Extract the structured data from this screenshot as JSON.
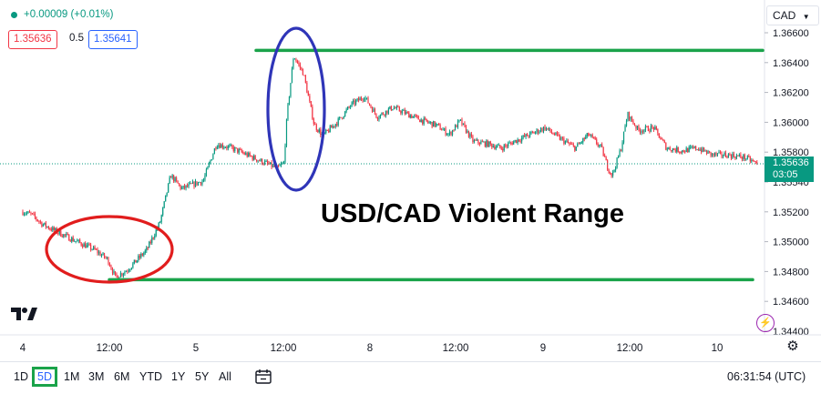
{
  "header": {
    "change": "+0.00009 (+0.01%)",
    "bid": "1.35636",
    "spread": "0.5",
    "ask": "1.35641"
  },
  "currency": "CAD",
  "current_price": {
    "value": "1.35636",
    "countdown": "03:05",
    "color": "#089981"
  },
  "annotation_text": "USD/CAD Violent Range",
  "toolbar": {
    "timeframes": [
      "1D",
      "5D",
      "1M",
      "3M",
      "6M",
      "YTD",
      "1Y",
      "5Y",
      "All"
    ],
    "active": "5D",
    "time": "06:31:54 (UTC)"
  },
  "chart_data": {
    "type": "candlestick",
    "symbol": "USD/CAD",
    "y_ticks": [
      "1.36600",
      "1.36400",
      "1.36200",
      "1.36000",
      "1.35800",
      "1.35540",
      "1.35200",
      "1.35000",
      "1.34800",
      "1.34600",
      "1.34400"
    ],
    "x_ticks": [
      "4",
      "12:00",
      "5",
      "12:00",
      "8",
      "12:00",
      "9",
      "12:00",
      "10"
    ],
    "ylim": [
      1.3441,
      1.3661
    ],
    "up_color": "#089981",
    "down_color": "#f23645",
    "support_level": 1.3478,
    "resistance_level": 1.3647,
    "price_path": [
      [
        0,
        1.3528
      ],
      [
        0.4,
        1.3526
      ],
      [
        0.9,
        1.3519
      ],
      [
        1.6,
        1.3513
      ],
      [
        2.5,
        1.3506
      ],
      [
        3.3,
        1.35
      ],
      [
        3.9,
        1.3493
      ],
      [
        4.25,
        1.348
      ],
      [
        4.8,
        1.3485
      ],
      [
        5.7,
        1.35
      ],
      [
        6.3,
        1.352
      ],
      [
        6.8,
        1.3555
      ],
      [
        7.3,
        1.3545
      ],
      [
        8.3,
        1.3551
      ],
      [
        8.9,
        1.3578
      ],
      [
        9.6,
        1.3575
      ],
      [
        10.3,
        1.357
      ],
      [
        11.0,
        1.3565
      ],
      [
        11.7,
        1.356
      ],
      [
        12.0,
        1.3564
      ],
      [
        12.15,
        1.36
      ],
      [
        12.45,
        1.3643
      ],
      [
        12.9,
        1.363
      ],
      [
        13.4,
        1.3592
      ],
      [
        13.8,
        1.3584
      ],
      [
        14.5,
        1.3595
      ],
      [
        15.1,
        1.3607
      ],
      [
        15.7,
        1.3613
      ],
      [
        16.3,
        1.3598
      ],
      [
        17.0,
        1.3605
      ],
      [
        17.7,
        1.36
      ],
      [
        18.4,
        1.3595
      ],
      [
        19.0,
        1.3592
      ],
      [
        19.6,
        1.3585
      ],
      [
        20.1,
        1.3595
      ],
      [
        20.7,
        1.358
      ],
      [
        21.4,
        1.3578
      ],
      [
        22.0,
        1.3575
      ],
      [
        22.6,
        1.358
      ],
      [
        23.3,
        1.3585
      ],
      [
        24.0,
        1.359
      ],
      [
        24.7,
        1.3582
      ],
      [
        25.4,
        1.3575
      ],
      [
        26.0,
        1.3585
      ],
      [
        26.6,
        1.3575
      ],
      [
        26.9,
        1.356
      ],
      [
        27.1,
        1.3555
      ],
      [
        27.5,
        1.3575
      ],
      [
        27.8,
        1.36
      ],
      [
        28.3,
        1.3588
      ],
      [
        29.0,
        1.359
      ],
      [
        29.6,
        1.3575
      ],
      [
        30.3,
        1.3573
      ],
      [
        31.0,
        1.3575
      ],
      [
        31.7,
        1.357
      ],
      [
        32.4,
        1.357
      ],
      [
        33.2,
        1.3568
      ],
      [
        33.8,
        1.3563
      ]
    ]
  }
}
